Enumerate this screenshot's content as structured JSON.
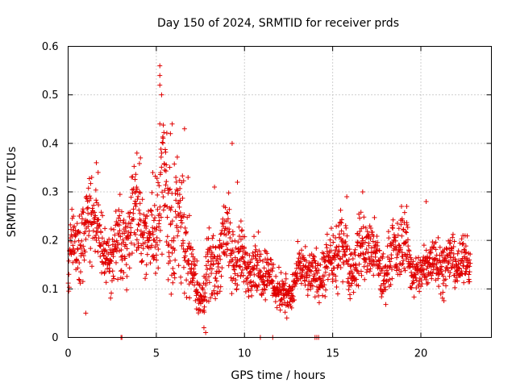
{
  "chart_data": {
    "type": "scatter",
    "title": "Day 150 of 2024, SRMTID for receiver prds",
    "xlabel": "GPS time / hours",
    "ylabel": "SRMTID / TECUs",
    "xlim": [
      0,
      24
    ],
    "ylim": [
      0,
      0.6
    ],
    "x_ticks": [
      0,
      5,
      10,
      15,
      20
    ],
    "x_tick_labels": [
      "0",
      "5",
      "10",
      "15",
      "20"
    ],
    "y_ticks": [
      0,
      0.1,
      0.2,
      0.3,
      0.4,
      0.5,
      0.6
    ],
    "y_tick_labels": [
      "0",
      "0.1",
      "0.2",
      "0.3",
      "0.4",
      "0.5",
      "0.6"
    ],
    "grid": true,
    "marker": "plus",
    "series": [
      {
        "name": "SRMTID",
        "color": "#e00000",
        "x_start": 0.0,
        "x_end": 22.8,
        "envelope": [
          [
            0.0,
            0.17,
            0.06
          ],
          [
            0.5,
            0.18,
            0.06
          ],
          [
            1.0,
            0.22,
            0.07
          ],
          [
            1.5,
            0.28,
            0.08
          ],
          [
            2.0,
            0.16,
            0.05
          ],
          [
            2.5,
            0.18,
            0.06
          ],
          [
            3.0,
            0.2,
            0.07
          ],
          [
            3.5,
            0.22,
            0.07
          ],
          [
            4.0,
            0.27,
            0.09
          ],
          [
            4.5,
            0.17,
            0.06
          ],
          [
            5.0,
            0.26,
            0.12
          ],
          [
            5.5,
            0.3,
            0.13
          ],
          [
            6.0,
            0.23,
            0.1
          ],
          [
            6.5,
            0.25,
            0.1
          ],
          [
            7.0,
            0.14,
            0.06
          ],
          [
            7.5,
            0.08,
            0.04
          ],
          [
            8.0,
            0.13,
            0.06
          ],
          [
            8.5,
            0.16,
            0.06
          ],
          [
            9.0,
            0.22,
            0.08
          ],
          [
            9.5,
            0.15,
            0.06
          ],
          [
            10.0,
            0.16,
            0.05
          ],
          [
            10.5,
            0.14,
            0.05
          ],
          [
            11.0,
            0.15,
            0.05
          ],
          [
            11.5,
            0.12,
            0.04
          ],
          [
            12.0,
            0.1,
            0.04
          ],
          [
            12.5,
            0.08,
            0.03
          ],
          [
            13.0,
            0.13,
            0.04
          ],
          [
            13.5,
            0.14,
            0.04
          ],
          [
            14.0,
            0.12,
            0.04
          ],
          [
            14.5,
            0.14,
            0.05
          ],
          [
            15.0,
            0.15,
            0.05
          ],
          [
            15.5,
            0.2,
            0.06
          ],
          [
            16.0,
            0.14,
            0.05
          ],
          [
            16.5,
            0.17,
            0.06
          ],
          [
            17.0,
            0.2,
            0.06
          ],
          [
            17.5,
            0.15,
            0.05
          ],
          [
            18.0,
            0.13,
            0.05
          ],
          [
            18.5,
            0.18,
            0.05
          ],
          [
            19.0,
            0.2,
            0.06
          ],
          [
            19.5,
            0.14,
            0.04
          ],
          [
            20.0,
            0.12,
            0.04
          ],
          [
            20.5,
            0.17,
            0.05
          ],
          [
            21.0,
            0.15,
            0.05
          ],
          [
            21.5,
            0.16,
            0.04
          ],
          [
            22.0,
            0.15,
            0.04
          ],
          [
            22.5,
            0.16,
            0.04
          ],
          [
            22.8,
            0.15,
            0.04
          ]
        ],
        "peaks": [
          [
            5.2,
            0.56
          ],
          [
            5.2,
            0.54
          ],
          [
            5.2,
            0.52
          ],
          [
            5.3,
            0.5
          ],
          [
            5.2,
            0.44
          ],
          [
            5.9,
            0.44
          ],
          [
            6.6,
            0.43
          ],
          [
            5.8,
            0.42
          ],
          [
            9.3,
            0.4
          ],
          [
            3.9,
            0.38
          ],
          [
            4.1,
            0.37
          ],
          [
            1.6,
            0.36
          ],
          [
            1.7,
            0.34
          ],
          [
            6.8,
            0.33
          ],
          [
            9.6,
            0.32
          ],
          [
            16.7,
            0.3
          ],
          [
            15.8,
            0.29
          ],
          [
            20.3,
            0.28
          ],
          [
            19.2,
            0.27
          ],
          [
            18.9,
            0.27
          ],
          [
            8.3,
            0.31
          ],
          [
            9.8,
            0.24
          ],
          [
            0.3,
            0.25
          ],
          [
            7.7,
            0.02
          ],
          [
            7.8,
            0.01
          ],
          [
            1.0,
            0.05
          ],
          [
            12.4,
            0.04
          ]
        ],
        "zero_points": [
          3.0,
          3.05,
          10.9,
          11.6,
          14.0,
          14.1,
          14.2
        ]
      }
    ]
  }
}
